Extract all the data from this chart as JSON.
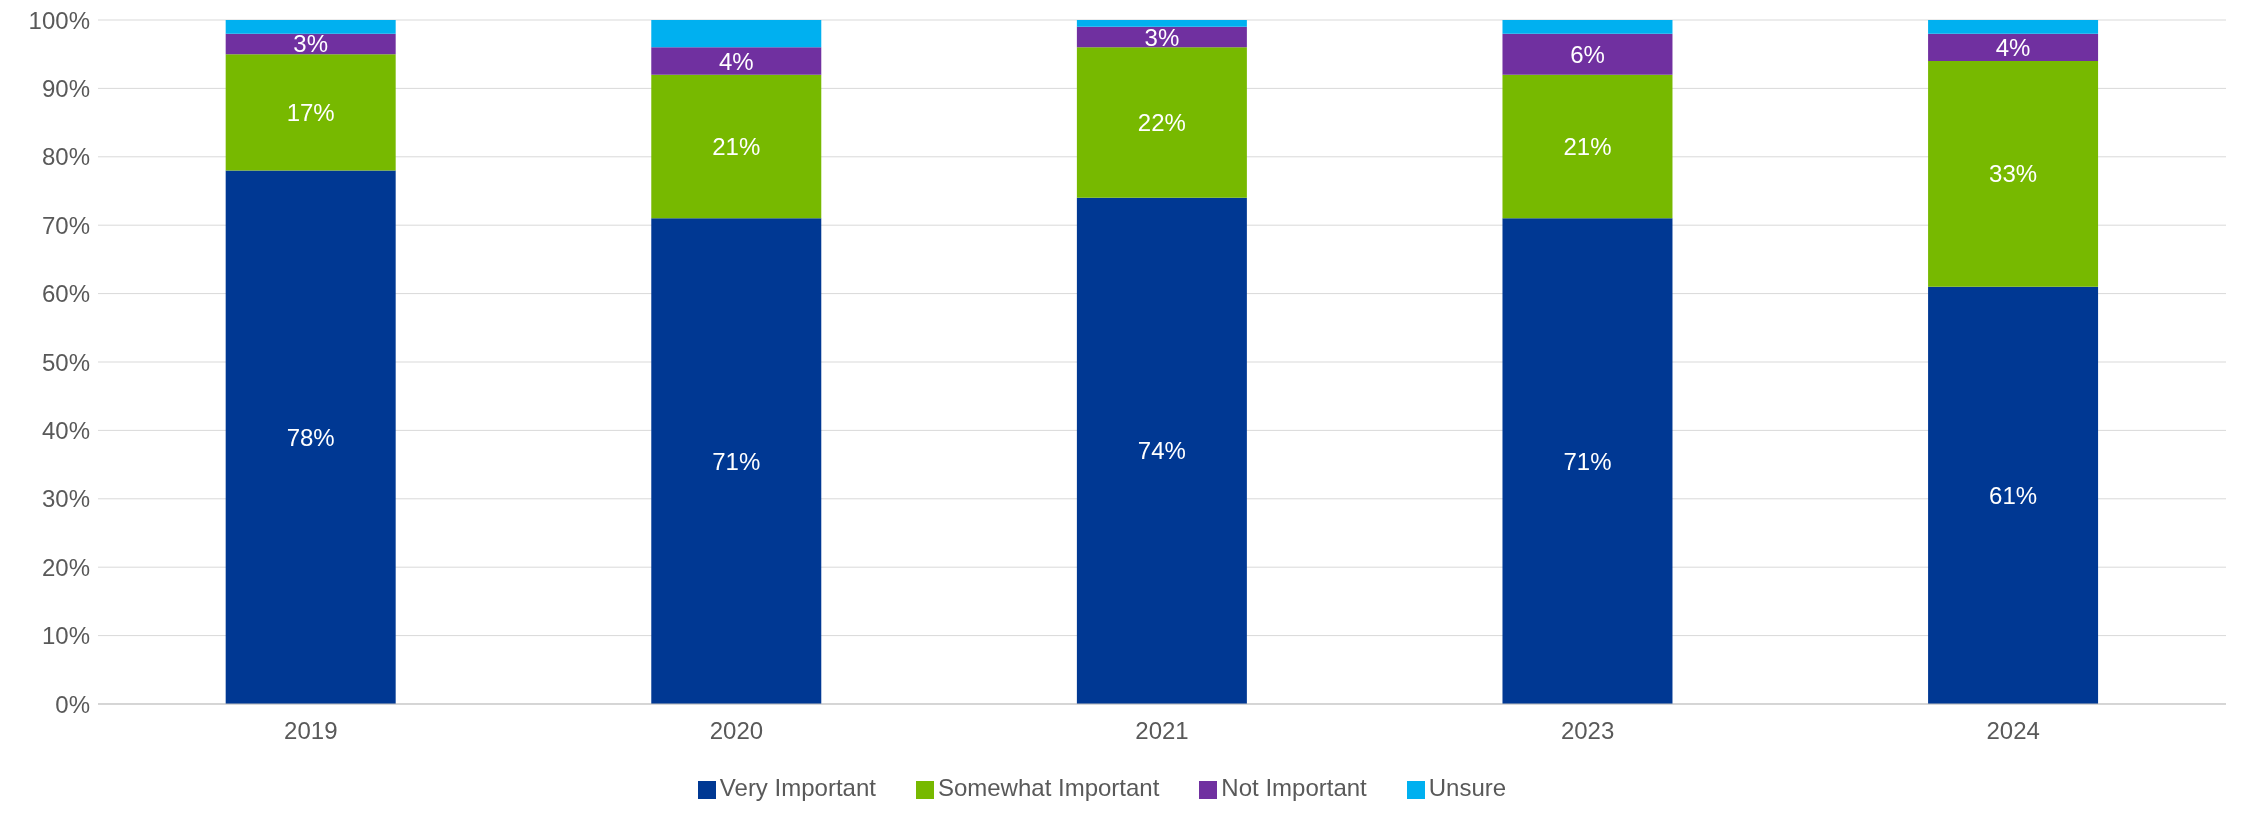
{
  "chart_data": {
    "type": "bar",
    "stacked": true,
    "categories": [
      "2019",
      "2020",
      "2021",
      "2023",
      "2024"
    ],
    "series": [
      {
        "name": "Very Important",
        "color": "#003893",
        "values": [
          78,
          71,
          74,
          71,
          61
        ],
        "value_labels": [
          "78%",
          "71%",
          "74%",
          "71%",
          "61%"
        ]
      },
      {
        "name": "Somewhat Important",
        "color": "#77b900",
        "values": [
          17,
          21,
          22,
          21,
          33
        ],
        "value_labels": [
          "17%",
          "21%",
          "22%",
          "21%",
          "33%"
        ]
      },
      {
        "name": "Not Important",
        "color": "#7030a0",
        "values": [
          3,
          4,
          3,
          6,
          4
        ],
        "value_labels": [
          "3%",
          "4%",
          "3%",
          "6%",
          "4%"
        ]
      },
      {
        "name": "Unsure",
        "color": "#00b0f0",
        "values": [
          2,
          4,
          1,
          2,
          2
        ]
      }
    ],
    "ylim": [
      0,
      100
    ],
    "yticks": [
      {
        "value": 0,
        "label": "0%"
      },
      {
        "value": 10,
        "label": "10%"
      },
      {
        "value": 20,
        "label": "20%"
      },
      {
        "value": 30,
        "label": "30%"
      },
      {
        "value": 40,
        "label": "40%"
      },
      {
        "value": 50,
        "label": "50%"
      },
      {
        "value": 60,
        "label": "60%"
      },
      {
        "value": 70,
        "label": "70%"
      },
      {
        "value": 80,
        "label": "80%"
      },
      {
        "value": 90,
        "label": "90%"
      },
      {
        "value": 100,
        "label": "100%"
      }
    ],
    "grid": "y",
    "legend": "bottom"
  }
}
